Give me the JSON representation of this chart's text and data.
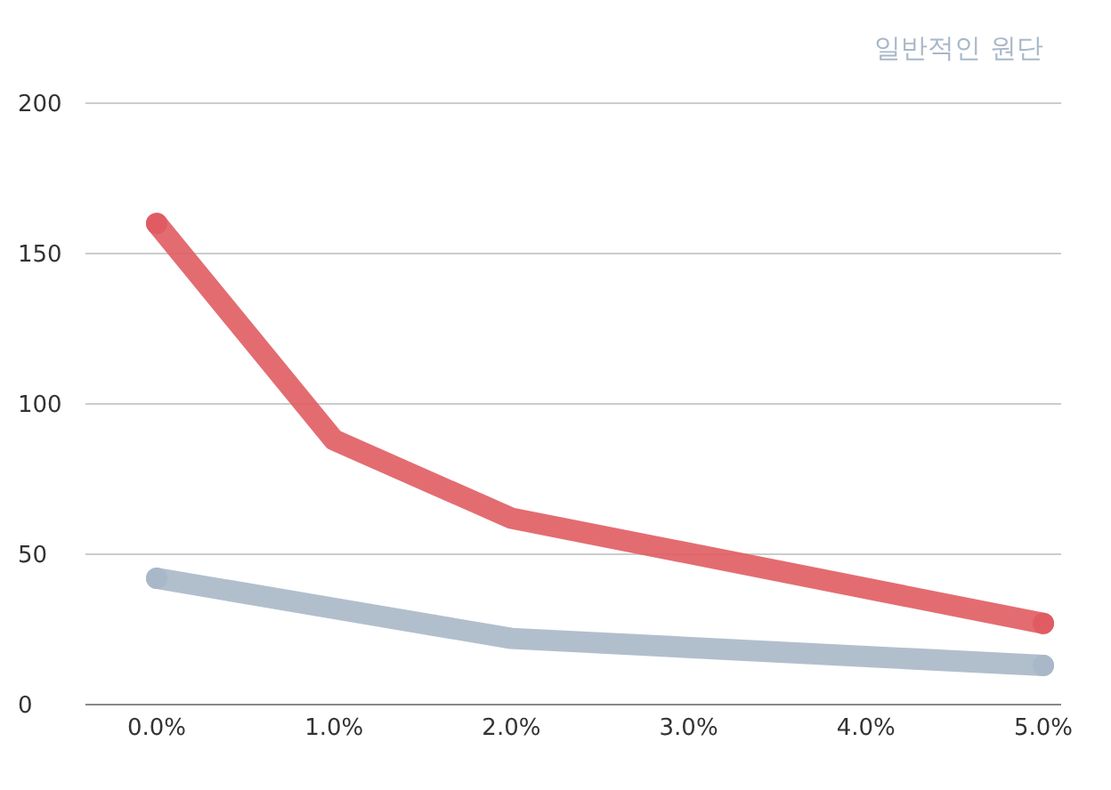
{
  "chart_data": {
    "type": "line",
    "categories": [
      "0.0%",
      "1.0%",
      "2.0%",
      "3.0%",
      "4.0%",
      "5.0%"
    ],
    "series": [
      {
        "name": "일반적인 원단",
        "color": "#a8b8c8",
        "values": [
          42,
          32,
          22,
          null,
          null,
          13
        ]
      },
      {
        "color": "#e05c62",
        "values": [
          160,
          88,
          62,
          null,
          null,
          27
        ]
      }
    ],
    "ylim": [
      0,
      200
    ],
    "yticks": [
      0,
      50,
      100,
      150,
      200
    ],
    "grid": "y",
    "legend": "top right",
    "marker": "circle",
    "line_style": "solid"
  }
}
